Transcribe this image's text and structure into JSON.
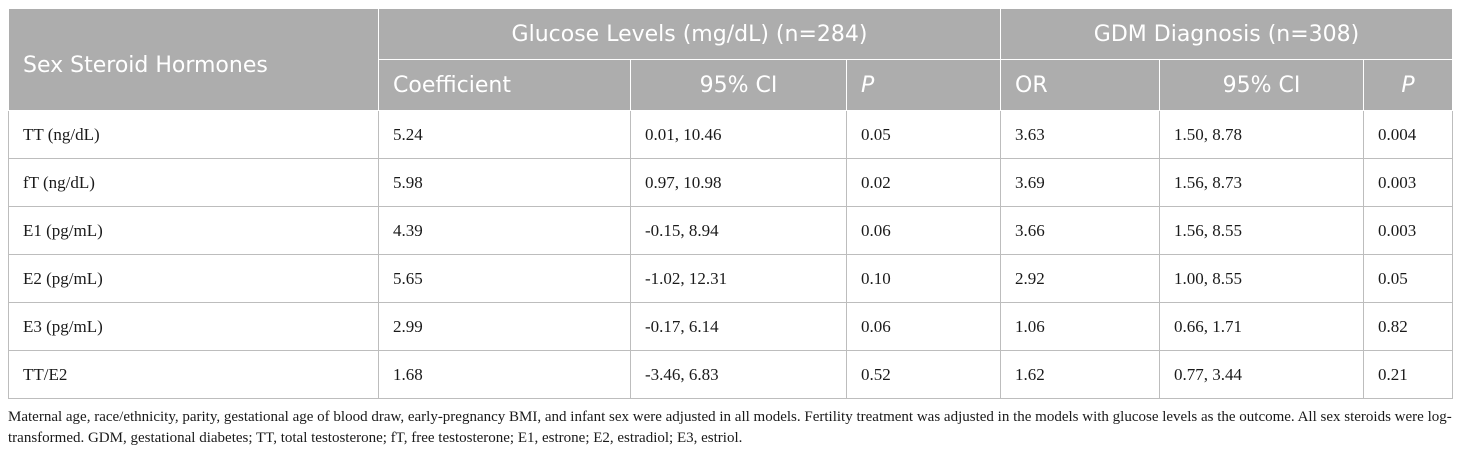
{
  "table": {
    "header_top": {
      "row_label": "Sex Steroid Hormones",
      "group_glucose": "Glucose Levels (mg/dL) (n=284)",
      "group_gdm": "GDM Diagnosis (n=308)"
    },
    "header_sub": [
      "Coefficient",
      "95% CI",
      "P",
      "OR",
      "95% CI",
      "P"
    ],
    "rows": [
      [
        "TT (ng/dL)",
        "5.24",
        "0.01, 10.46",
        "0.05",
        "3.63",
        "1.50, 8.78",
        "0.004"
      ],
      [
        "fT (ng/dL)",
        "5.98",
        "0.97, 10.98",
        "0.02",
        "3.69",
        "1.56, 8.73",
        "0.003"
      ],
      [
        "E1 (pg/mL)",
        "4.39",
        "-0.15, 8.94",
        "0.06",
        "3.66",
        "1.56, 8.55",
        "0.003"
      ],
      [
        "E2 (pg/mL)",
        "5.65",
        "-1.02, 12.31",
        "0.10",
        "2.92",
        "1.00, 8.55",
        "0.05"
      ],
      [
        "E3 (pg/mL)",
        "2.99",
        "-0.17, 6.14",
        "0.06",
        "1.06",
        "0.66, 1.71",
        "0.82"
      ],
      [
        "TT/E2",
        "1.68",
        "-3.46, 6.83",
        "0.52",
        "1.62",
        "0.77, 3.44",
        "0.21"
      ]
    ]
  },
  "footnote": "Maternal age, race/ethnicity, parity, gestational age of blood draw, early-pregnancy BMI, and infant sex were adjusted in all models. Fertility treatment was adjusted in the models with glucose levels as the outcome. All sex steroids were log-transformed. GDM, gestational diabetes; TT, total testosterone; fT, free testosterone; E1, estrone; E2, estradiol; E3, estriol."
}
